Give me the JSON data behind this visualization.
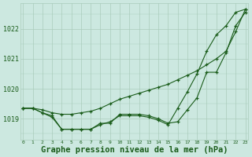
{
  "background_color": "#cce8e0",
  "plot_bg_color": "#cce8e0",
  "grid_color": "#aaccbb",
  "line_color": "#1a5c1a",
  "marker_color": "#1a5c1a",
  "xlabel": "Graphe pression niveau de la mer (hPa)",
  "xlabel_fontsize": 7.5,
  "xtick_labels": [
    "0",
    "1",
    "2",
    "3",
    "4",
    "5",
    "6",
    "7",
    "8",
    "9",
    "10",
    "11",
    "12",
    "13",
    "14",
    "15",
    "16",
    "17",
    "18",
    "19",
    "20",
    "21",
    "22",
    "23"
  ],
  "ytick_values": [
    1019,
    1020,
    1021,
    1022
  ],
  "ylim": [
    1018.3,
    1022.85
  ],
  "xlim": [
    -0.3,
    23.3
  ],
  "series": [
    [
      1019.35,
      1019.35,
      1019.3,
      1019.2,
      1019.15,
      1019.15,
      1019.2,
      1019.25,
      1019.35,
      1019.5,
      1019.65,
      1019.75,
      1019.85,
      1019.95,
      1020.05,
      1020.15,
      1020.3,
      1020.45,
      1020.6,
      1020.8,
      1021.0,
      1021.25,
      1021.9,
      1022.65
    ],
    [
      1019.35,
      1019.35,
      1019.2,
      1019.1,
      1018.65,
      1018.65,
      1018.65,
      1018.65,
      1018.85,
      1018.85,
      1019.15,
      1019.15,
      1019.15,
      1019.1,
      1019.0,
      1018.85,
      1018.9,
      1019.3,
      1019.7,
      1020.55,
      1020.55,
      1021.2,
      1022.1,
      1022.55
    ],
    [
      1019.35,
      1019.35,
      1019.2,
      1019.05,
      1018.65,
      1018.65,
      1018.65,
      1018.65,
      1018.8,
      1018.9,
      1019.1,
      1019.1,
      1019.1,
      1019.05,
      1018.95,
      1018.8,
      1019.35,
      1019.9,
      1020.5,
      1021.25,
      1021.8,
      1022.1,
      1022.55,
      1022.65
    ]
  ]
}
